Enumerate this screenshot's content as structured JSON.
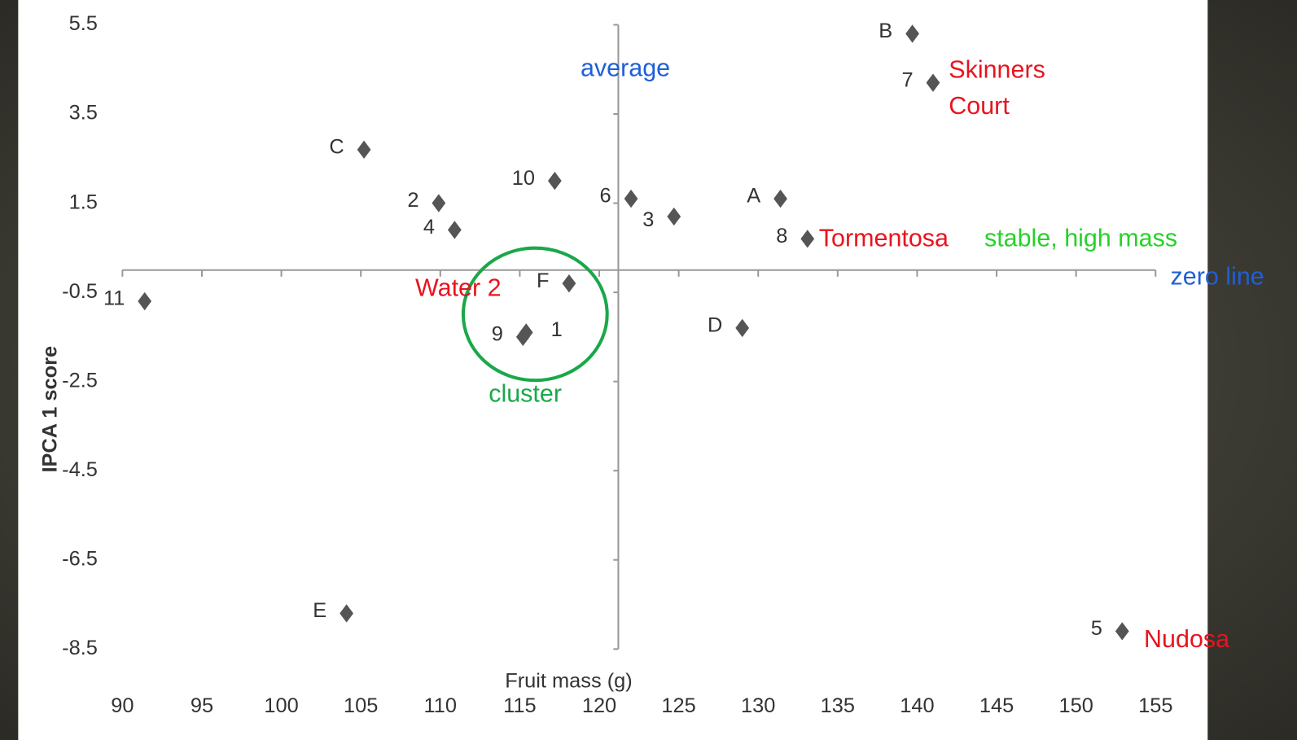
{
  "chart_data": {
    "type": "scatter",
    "xlabel": "Fruit mass (g)",
    "ylabel": "IPCA 1 score",
    "xlim": [
      90,
      155
    ],
    "ylim": [
      -8.5,
      5.5
    ],
    "xticks": [
      90,
      95,
      100,
      105,
      110,
      115,
      120,
      125,
      130,
      135,
      140,
      145,
      150,
      155
    ],
    "yticks": [
      5.5,
      3.5,
      1.5,
      -0.5,
      -2.5,
      -4.5,
      -6.5,
      -8.5
    ],
    "x_crossing": 121.2,
    "y_crossing": 0,
    "series": [
      {
        "color": "#555555",
        "labels": [
          "B",
          "7",
          "C",
          "10",
          "2",
          "4",
          "6",
          "3",
          "A",
          "8",
          "11",
          "F",
          "9",
          "1",
          "D",
          "E",
          "5"
        ],
        "x": [
          139.7,
          141.0,
          105.2,
          117.2,
          109.9,
          110.9,
          122.0,
          124.7,
          131.4,
          133.1,
          91.4,
          118.1,
          115.2,
          115.4,
          129.0,
          104.1,
          152.9
        ],
        "values": [
          5.3,
          4.2,
          2.7,
          2.0,
          1.5,
          0.9,
          1.6,
          1.2,
          1.6,
          0.7,
          -0.7,
          -0.3,
          -1.5,
          -1.4,
          -1.3,
          -7.7,
          -8.1
        ]
      }
    ],
    "annotations": [
      {
        "text": "average",
        "color": "#1f5fd6"
      },
      {
        "text": "Skinners",
        "color": "#e8141e"
      },
      {
        "text": "Court",
        "color": "#e8141e"
      },
      {
        "text": "Tormentosa",
        "color": "#e8141e"
      },
      {
        "text": "stable, high mass",
        "color": "#27d12a"
      },
      {
        "text": "zero line",
        "color": "#1f5fd6"
      },
      {
        "text": "Water 2",
        "color": "#e8141e"
      },
      {
        "text": "cluster",
        "color": "#1aa84a"
      },
      {
        "text": "Nudosa",
        "color": "#e8141e"
      }
    ]
  }
}
